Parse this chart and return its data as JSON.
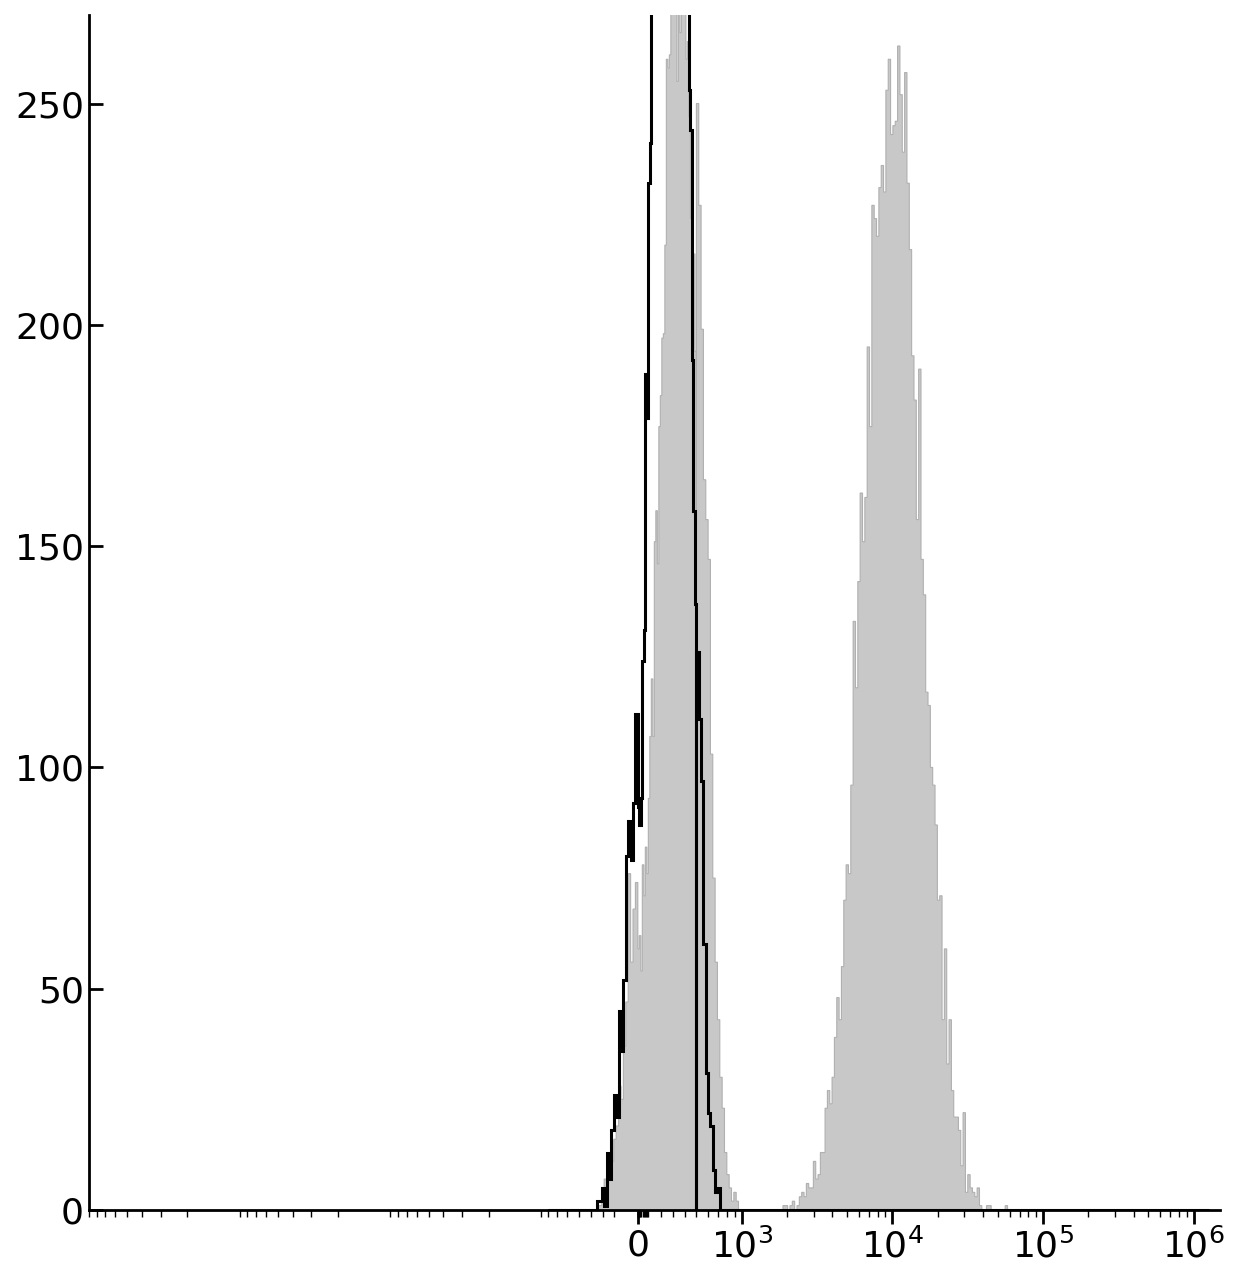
{
  "title": "",
  "xlim_display": [
    -300,
    1200000
  ],
  "ylim": [
    0,
    270
  ],
  "yticks": [
    0,
    50,
    100,
    150,
    200,
    250
  ],
  "background_color": "#ffffff",
  "gray_facecolor": "#c8c8c8",
  "gray_edgecolor": "#b0b0b0",
  "black_edgecolor": "#000000",
  "black_linewidth": 2.2,
  "gray_linewidth": 0.8,
  "linthresh": 500,
  "linscale": 0.35,
  "n_bins": 300,
  "tick_labelsize": 26,
  "spine_linewidth": 2.0
}
